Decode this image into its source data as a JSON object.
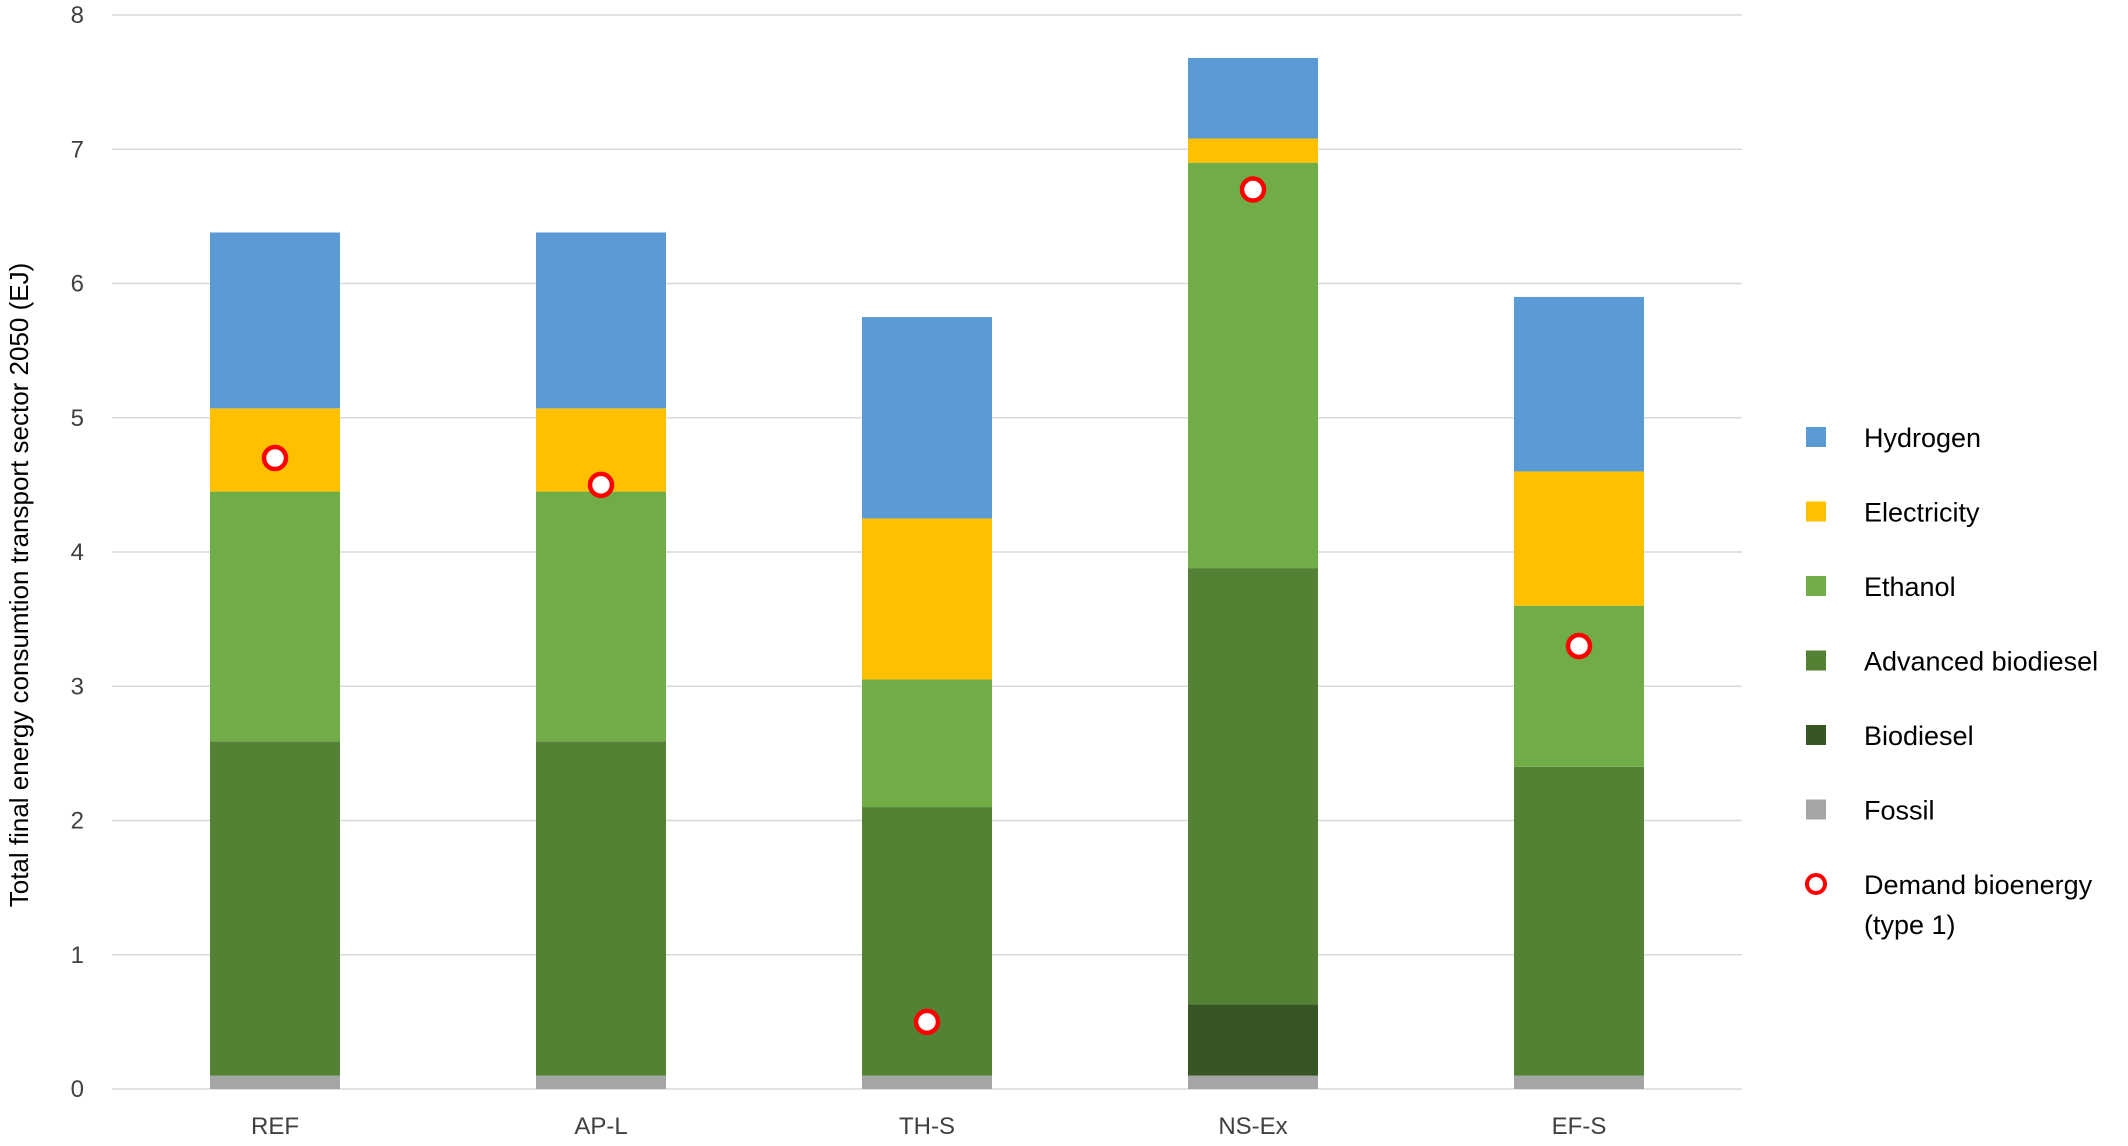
{
  "chart_data": {
    "type": "bar",
    "stacked": true,
    "title": "",
    "xlabel": "",
    "ylabel": "Total final energy consumtion transport sector 2050 (EJ)",
    "ylim": [
      0,
      8
    ],
    "yticks": [
      0,
      1,
      2,
      3,
      4,
      5,
      6,
      7,
      8
    ],
    "grid": true,
    "legend_position": "right",
    "categories": [
      "REF",
      "AP-L",
      "TH-S",
      "NS-Ex",
      "EF-S"
    ],
    "series": [
      {
        "name": "Fossil",
        "color": "#a5a5a5",
        "values": [
          0.1,
          0.1,
          0.1,
          0.1,
          0.1
        ]
      },
      {
        "name": "Biodiesel",
        "color": "#375623",
        "values": [
          0,
          0,
          0,
          0.53,
          0
        ]
      },
      {
        "name": "Advanced biodiesel",
        "color": "#548235",
        "values": [
          2.49,
          2.49,
          2.0,
          3.25,
          2.3
        ]
      },
      {
        "name": "Ethanol",
        "color": "#70ad47",
        "values": [
          1.86,
          1.86,
          0.95,
          3.02,
          1.2
        ]
      },
      {
        "name": "Electricity",
        "color": "#ffc000",
        "values": [
          0.62,
          0.62,
          1.2,
          0.18,
          1.0
        ]
      },
      {
        "name": "Hydrogen",
        "color": "#5b9bd5",
        "values": [
          1.31,
          1.31,
          1.5,
          0.6,
          1.3
        ]
      }
    ],
    "markers": {
      "name": "Demand bioenergy (type 1)",
      "color": "#ff0000",
      "values": [
        4.7,
        4.5,
        0.5,
        6.7,
        3.3
      ]
    },
    "legend_order": [
      "Hydrogen",
      "Electricity",
      "Ethanol",
      "Advanced biodiesel",
      "Biodiesel",
      "Fossil",
      "Demand bioenergy (type 1)"
    ],
    "legend_marker_label_lines": [
      "Demand bioenergy",
      "(type 1)"
    ]
  }
}
